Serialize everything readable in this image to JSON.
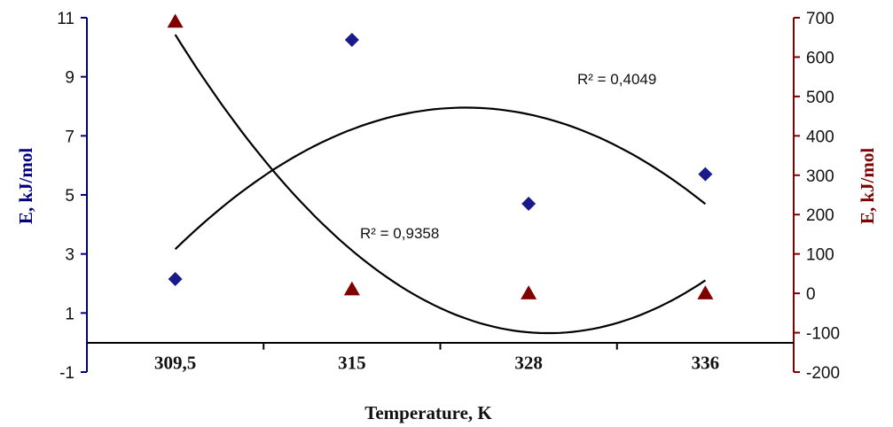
{
  "chart_data": {
    "type": "scatter",
    "categories": [
      "309,5",
      "315",
      "328",
      "336"
    ],
    "xlabel": "Temperature, K",
    "left_axis": {
      "label": "E, kJ/mol",
      "color": "#000080",
      "range": [
        -1,
        11
      ],
      "ticks": [
        -1,
        1,
        3,
        5,
        7,
        9,
        11
      ]
    },
    "right_axis": {
      "label": "E, kJ/mol",
      "color": "#800000",
      "range": [
        -200,
        700
      ],
      "ticks": [
        -200,
        -100,
        0,
        100,
        200,
        300,
        400,
        500,
        600,
        700
      ]
    },
    "x_axis_crosses_left_at": 0,
    "series": [
      {
        "marker": "diamond",
        "color": "#1a1a8c",
        "axis": "left",
        "values": [
          2.15,
          10.25,
          4.7,
          5.7
        ],
        "trendline": {
          "type": "polynomial-2",
          "r2_text": "R² = 0,4049"
        }
      },
      {
        "marker": "triangle",
        "color": "#800000",
        "axis": "right",
        "values": [
          690,
          10,
          0,
          0
        ],
        "trendline": {
          "type": "polynomial-2",
          "r2_text": "R² = 0,9358"
        }
      }
    ],
    "grid": false,
    "legend": "none"
  }
}
